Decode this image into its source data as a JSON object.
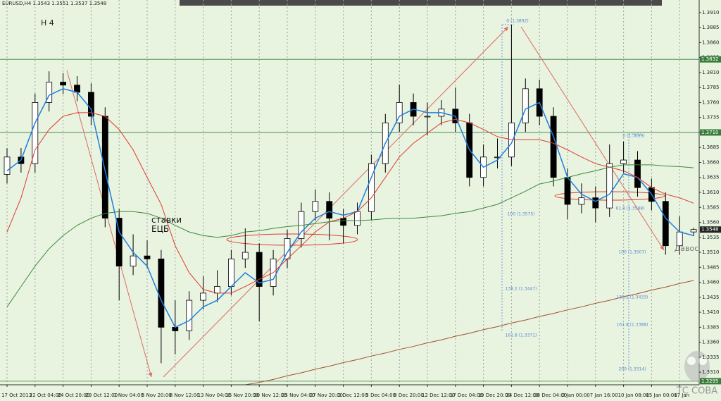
{
  "chart_data": {
    "type": "candlestick",
    "title": "EURUSD,H4  1.3543 1.3551 1.3537 1.3548",
    "timeframe": "H 4",
    "annotations": [
      "ставки ЕЦБ",
      "Давос"
    ],
    "watermark": "ТС СОВА",
    "categories": [
      "17 Oct 2013",
      null,
      "22 Oct 04:00",
      null,
      "24 Oct 20:00",
      null,
      "29 Oct 12:00",
      null,
      "1 Nov 04:00",
      null,
      "5 Nov 20:00",
      null,
      "8 Nov 12:00",
      null,
      "13 Nov 04:00",
      null,
      "15 Nov 20:00",
      null,
      "20 Nov 12:00",
      null,
      "25 Nov 04:00",
      null,
      "27 Nov 20:00",
      null,
      "2 Dec 12:00",
      null,
      "5 Dec 04:00",
      null,
      "9 Dec 20:00",
      null,
      "12 Dec 12:00",
      null,
      "17 Dec 04:00",
      null,
      "19 Dec 20:00",
      null,
      "24 Dec 12:00",
      null,
      "30 Dec 04:00",
      null,
      "3 Jan 00:00",
      null,
      "7 Jan 16:00",
      null,
      "10 Jan 08:00",
      null,
      "15 Jan 00:00",
      null,
      "17 Jan",
      null
    ],
    "open": [
      1.364,
      1.3669,
      1.3658,
      1.376,
      1.3794,
      1.3789,
      1.3777,
      1.3737,
      1.3567,
      1.3487,
      1.3504,
      1.3499,
      1.3385,
      1.3379,
      1.343,
      1.3442,
      1.3453,
      1.3499,
      1.351,
      1.3453,
      1.3499,
      1.3533,
      1.3578,
      1.3595,
      1.3567,
      1.3555,
      1.3578,
      1.3658,
      1.3726,
      1.376,
      1.3737,
      1.3737,
      1.3749,
      1.3726,
      1.3635,
      1.3669,
      1.3669,
      1.3726,
      1.3783,
      1.3737,
      1.3635,
      1.359,
      1.3601,
      1.3584,
      1.3658,
      1.3664,
      1.3618,
      1.3595,
      1.3521,
      1.3544
    ],
    "high": [
      1.3684,
      1.3684,
      1.3775,
      1.3812,
      1.3809,
      1.3804,
      1.3792,
      1.3752,
      1.3582,
      1.354,
      1.353,
      1.3514,
      1.343,
      1.3445,
      1.347,
      1.348,
      1.3514,
      1.355,
      1.3525,
      1.3514,
      1.3548,
      1.3593,
      1.3615,
      1.361,
      1.3582,
      1.3593,
      1.3673,
      1.3741,
      1.379,
      1.3775,
      1.376,
      1.3764,
      1.3785,
      1.3741,
      1.369,
      1.37,
      1.389,
      1.38,
      1.3798,
      1.3752,
      1.365,
      1.3625,
      1.362,
      1.369,
      1.3695,
      1.3679,
      1.3633,
      1.361,
      1.357,
      1.3551
    ],
    "low": [
      1.3625,
      1.3643,
      1.3643,
      1.3745,
      1.3774,
      1.3762,
      1.3722,
      1.3552,
      1.343,
      1.3472,
      1.3484,
      1.3325,
      1.334,
      1.3364,
      1.3415,
      1.3427,
      1.3438,
      1.3484,
      1.3395,
      1.3438,
      1.3484,
      1.3518,
      1.3563,
      1.353,
      1.3525,
      1.354,
      1.3563,
      1.3643,
      1.3711,
      1.3722,
      1.3705,
      1.3722,
      1.3711,
      1.362,
      1.362,
      1.365,
      1.3654,
      1.3711,
      1.3722,
      1.362,
      1.3565,
      1.3575,
      1.356,
      1.3569,
      1.3643,
      1.3603,
      1.358,
      1.3506,
      1.3506,
      1.3537
    ],
    "close": [
      1.3669,
      1.3658,
      1.376,
      1.3794,
      1.3789,
      1.3777,
      1.3737,
      1.3567,
      1.3487,
      1.3504,
      1.3499,
      1.3385,
      1.3379,
      1.343,
      1.3442,
      1.3453,
      1.3499,
      1.351,
      1.3453,
      1.3499,
      1.3533,
      1.3578,
      1.3595,
      1.3567,
      1.3555,
      1.3578,
      1.3658,
      1.3726,
      1.376,
      1.3737,
      1.3737,
      1.3749,
      1.3726,
      1.3635,
      1.3669,
      1.3669,
      1.3726,
      1.3783,
      1.3737,
      1.3635,
      1.359,
      1.3601,
      1.3584,
      1.3658,
      1.3664,
      1.3618,
      1.3595,
      1.3521,
      1.3544,
      1.3548
    ],
    "series": [
      {
        "color": "#1e7fe0",
        "values": [
          1.3646,
          1.3664,
          1.3726,
          1.3772,
          1.3783,
          1.3777,
          1.3749,
          1.3646,
          1.3544,
          1.351,
          1.3487,
          1.343,
          1.3385,
          1.3396,
          1.3419,
          1.343,
          1.3453,
          1.3476,
          1.3459,
          1.3465,
          1.351,
          1.3544,
          1.3567,
          1.3578,
          1.3572,
          1.3578,
          1.3635,
          1.3692,
          1.3737,
          1.3749,
          1.3743,
          1.3743,
          1.3737,
          1.3681,
          1.3652,
          1.3664,
          1.3692,
          1.3749,
          1.376,
          1.3703,
          1.3635,
          1.3607,
          1.3595,
          1.3607,
          1.3641,
          1.3635,
          1.3607,
          1.3567,
          1.3544,
          1.3538
        ]
      },
      {
        "color": "#e03a2f",
        "values": [
          1.3544,
          1.3601,
          1.3681,
          1.3715,
          1.3737,
          1.3743,
          1.3743,
          1.3737,
          1.3715,
          1.3681,
          1.3635,
          1.359,
          1.3521,
          1.3476,
          1.3448,
          1.3442,
          1.3442,
          1.3453,
          1.3465,
          1.3476,
          1.3499,
          1.3521,
          1.3544,
          1.3561,
          1.3567,
          1.3578,
          1.3601,
          1.3635,
          1.3669,
          1.3692,
          1.3709,
          1.3726,
          1.3732,
          1.3726,
          1.3715,
          1.3703,
          1.3698,
          1.3698,
          1.3698,
          1.3692,
          1.3681,
          1.3669,
          1.3658,
          1.3652,
          1.3646,
          1.3635,
          1.3618,
          1.3607,
          1.3601,
          1.3592
        ]
      },
      {
        "color": "#3c8a3c",
        "values": [
          1.3419,
          1.3453,
          1.3487,
          1.3516,
          1.3538,
          1.3555,
          1.3567,
          1.3575,
          1.3578,
          1.3578,
          1.3575,
          1.3567,
          1.3555,
          1.3544,
          1.3538,
          1.3535,
          1.3538,
          1.3544,
          1.3546,
          1.355,
          1.3553,
          1.3555,
          1.3558,
          1.3561,
          1.3563,
          1.3563,
          1.3564,
          1.3566,
          1.3567,
          1.3567,
          1.3569,
          1.3571,
          1.3575,
          1.3578,
          1.3584,
          1.359,
          1.3601,
          1.3612,
          1.3624,
          1.3629,
          1.3635,
          1.3641,
          1.3646,
          1.3652,
          1.3656,
          1.3656,
          1.3656,
          1.3654,
          1.3653,
          1.3651
        ]
      },
      {
        "color": "#a0522d",
        "values": [
          null,
          null,
          null,
          null,
          null,
          null,
          null,
          null,
          null,
          null,
          null,
          null,
          null,
          null,
          null,
          null,
          null,
          1.3289,
          1.3293,
          1.3298,
          1.3304,
          1.3309,
          1.3315,
          1.332,
          1.3326,
          1.3331,
          1.3337,
          1.3342,
          1.3348,
          1.3353,
          1.3359,
          1.3364,
          1.337,
          1.3375,
          1.3381,
          1.3386,
          1.3392,
          1.3397,
          1.3403,
          1.3408,
          1.3414,
          1.3419,
          1.3425,
          1.343,
          1.3436,
          1.3441,
          1.3447,
          1.3452,
          1.3458,
          1.3463
        ]
      }
    ],
    "levels": [
      1.3832,
      {
        "value": 1.371,
        "label": "1.3710"
      },
      1.3295
    ],
    "last_price": 1.3548,
    "fib_labels": [
      "0 (1.3892)",
      "100 (1.3575)",
      "138.2 (1.3447)",
      "161.8 (1.3371)",
      "0 (1.3699)",
      "61.8 (1.3588)",
      "100 (1.3507)",
      "138.2 (1.3433)",
      "161.8 (1.3388)",
      "200 (1.3314)"
    ],
    "ylim": [
      1.3289,
      1.3931
    ],
    "yticks": [
      {
        "value": 1.331,
        "label": "1.3310"
      },
      1.3335,
      {
        "value": 1.336,
        "label": "1.3360"
      },
      1.3385,
      {
        "value": 1.341,
        "label": "1.3410"
      },
      1.3435,
      {
        "value": 1.346,
        "label": "1.3460"
      },
      1.3485,
      {
        "value": 1.351,
        "label": "1.3510"
      },
      1.3535,
      {
        "value": 1.356,
        "label": "1.3560"
      },
      1.3585,
      {
        "value": 1.361,
        "label": "1.3610"
      },
      1.3635,
      {
        "value": 1.366,
        "label": "1.3660"
      },
      1.3685,
      {
        "value": 1.371,
        "label": "1.3710"
      },
      1.3735,
      {
        "value": 1.376,
        "label": "1.3760"
      },
      1.3785,
      {
        "value": 1.381,
        "label": "1.3810"
      },
      1.3835,
      {
        "value": 1.386,
        "label": "1.3860"
      },
      1.3885,
      {
        "value": 1.391,
        "label": "1.3910"
      }
    ],
    "bull_color": "#ffffff",
    "bear_color": "#000000",
    "level_color": "#3a7d3a"
  }
}
